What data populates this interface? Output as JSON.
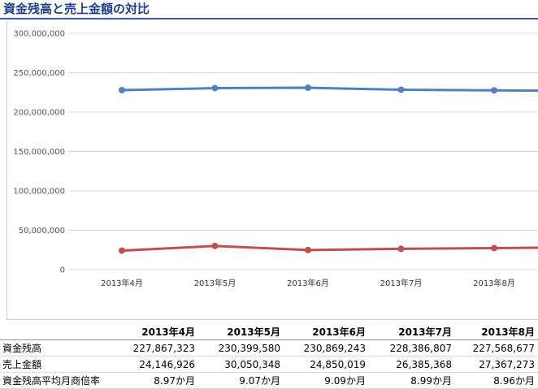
{
  "title": "資金残高と売上金額の対比",
  "chart_data": {
    "type": "line",
    "categories": [
      "2013年4月",
      "2013年5月",
      "2013年6月",
      "2013年7月",
      "2013年8月"
    ],
    "series": [
      {
        "name": "資金残高",
        "values": [
          227867323,
          230399580,
          230869243,
          228386807,
          227568677
        ],
        "color": "#4f81bd"
      },
      {
        "name": "売上金額",
        "values": [
          24146926,
          30050348,
          24850019,
          26385368,
          27367273
        ],
        "color": "#c0504d"
      }
    ],
    "ylim": [
      0,
      300000000
    ],
    "yticks": [
      "300,000,000",
      "250,000,000",
      "200,000,000",
      "150,000,000",
      "100,000,000",
      "50,000,000",
      "0"
    ],
    "grid": true,
    "legend": "none"
  },
  "table": {
    "headers": [
      "2013年4月",
      "2013年5月",
      "2013年6月",
      "2013年7月",
      "2013年8月"
    ],
    "rows": [
      {
        "label": "資金残高",
        "cells": [
          "227,867,323",
          "230,399,580",
          "230,869,243",
          "228,386,807",
          "227,568,677"
        ]
      },
      {
        "label": "売上金額",
        "cells": [
          "24,146,926",
          "30,050,348",
          "24,850,019",
          "26,385,368",
          "27,367,273"
        ]
      },
      {
        "label": "資金残高平均月商倍率",
        "cells": [
          "8.97か月",
          "9.07か月",
          "9.09か月",
          "8.99か月",
          "8.96か月"
        ]
      }
    ]
  }
}
